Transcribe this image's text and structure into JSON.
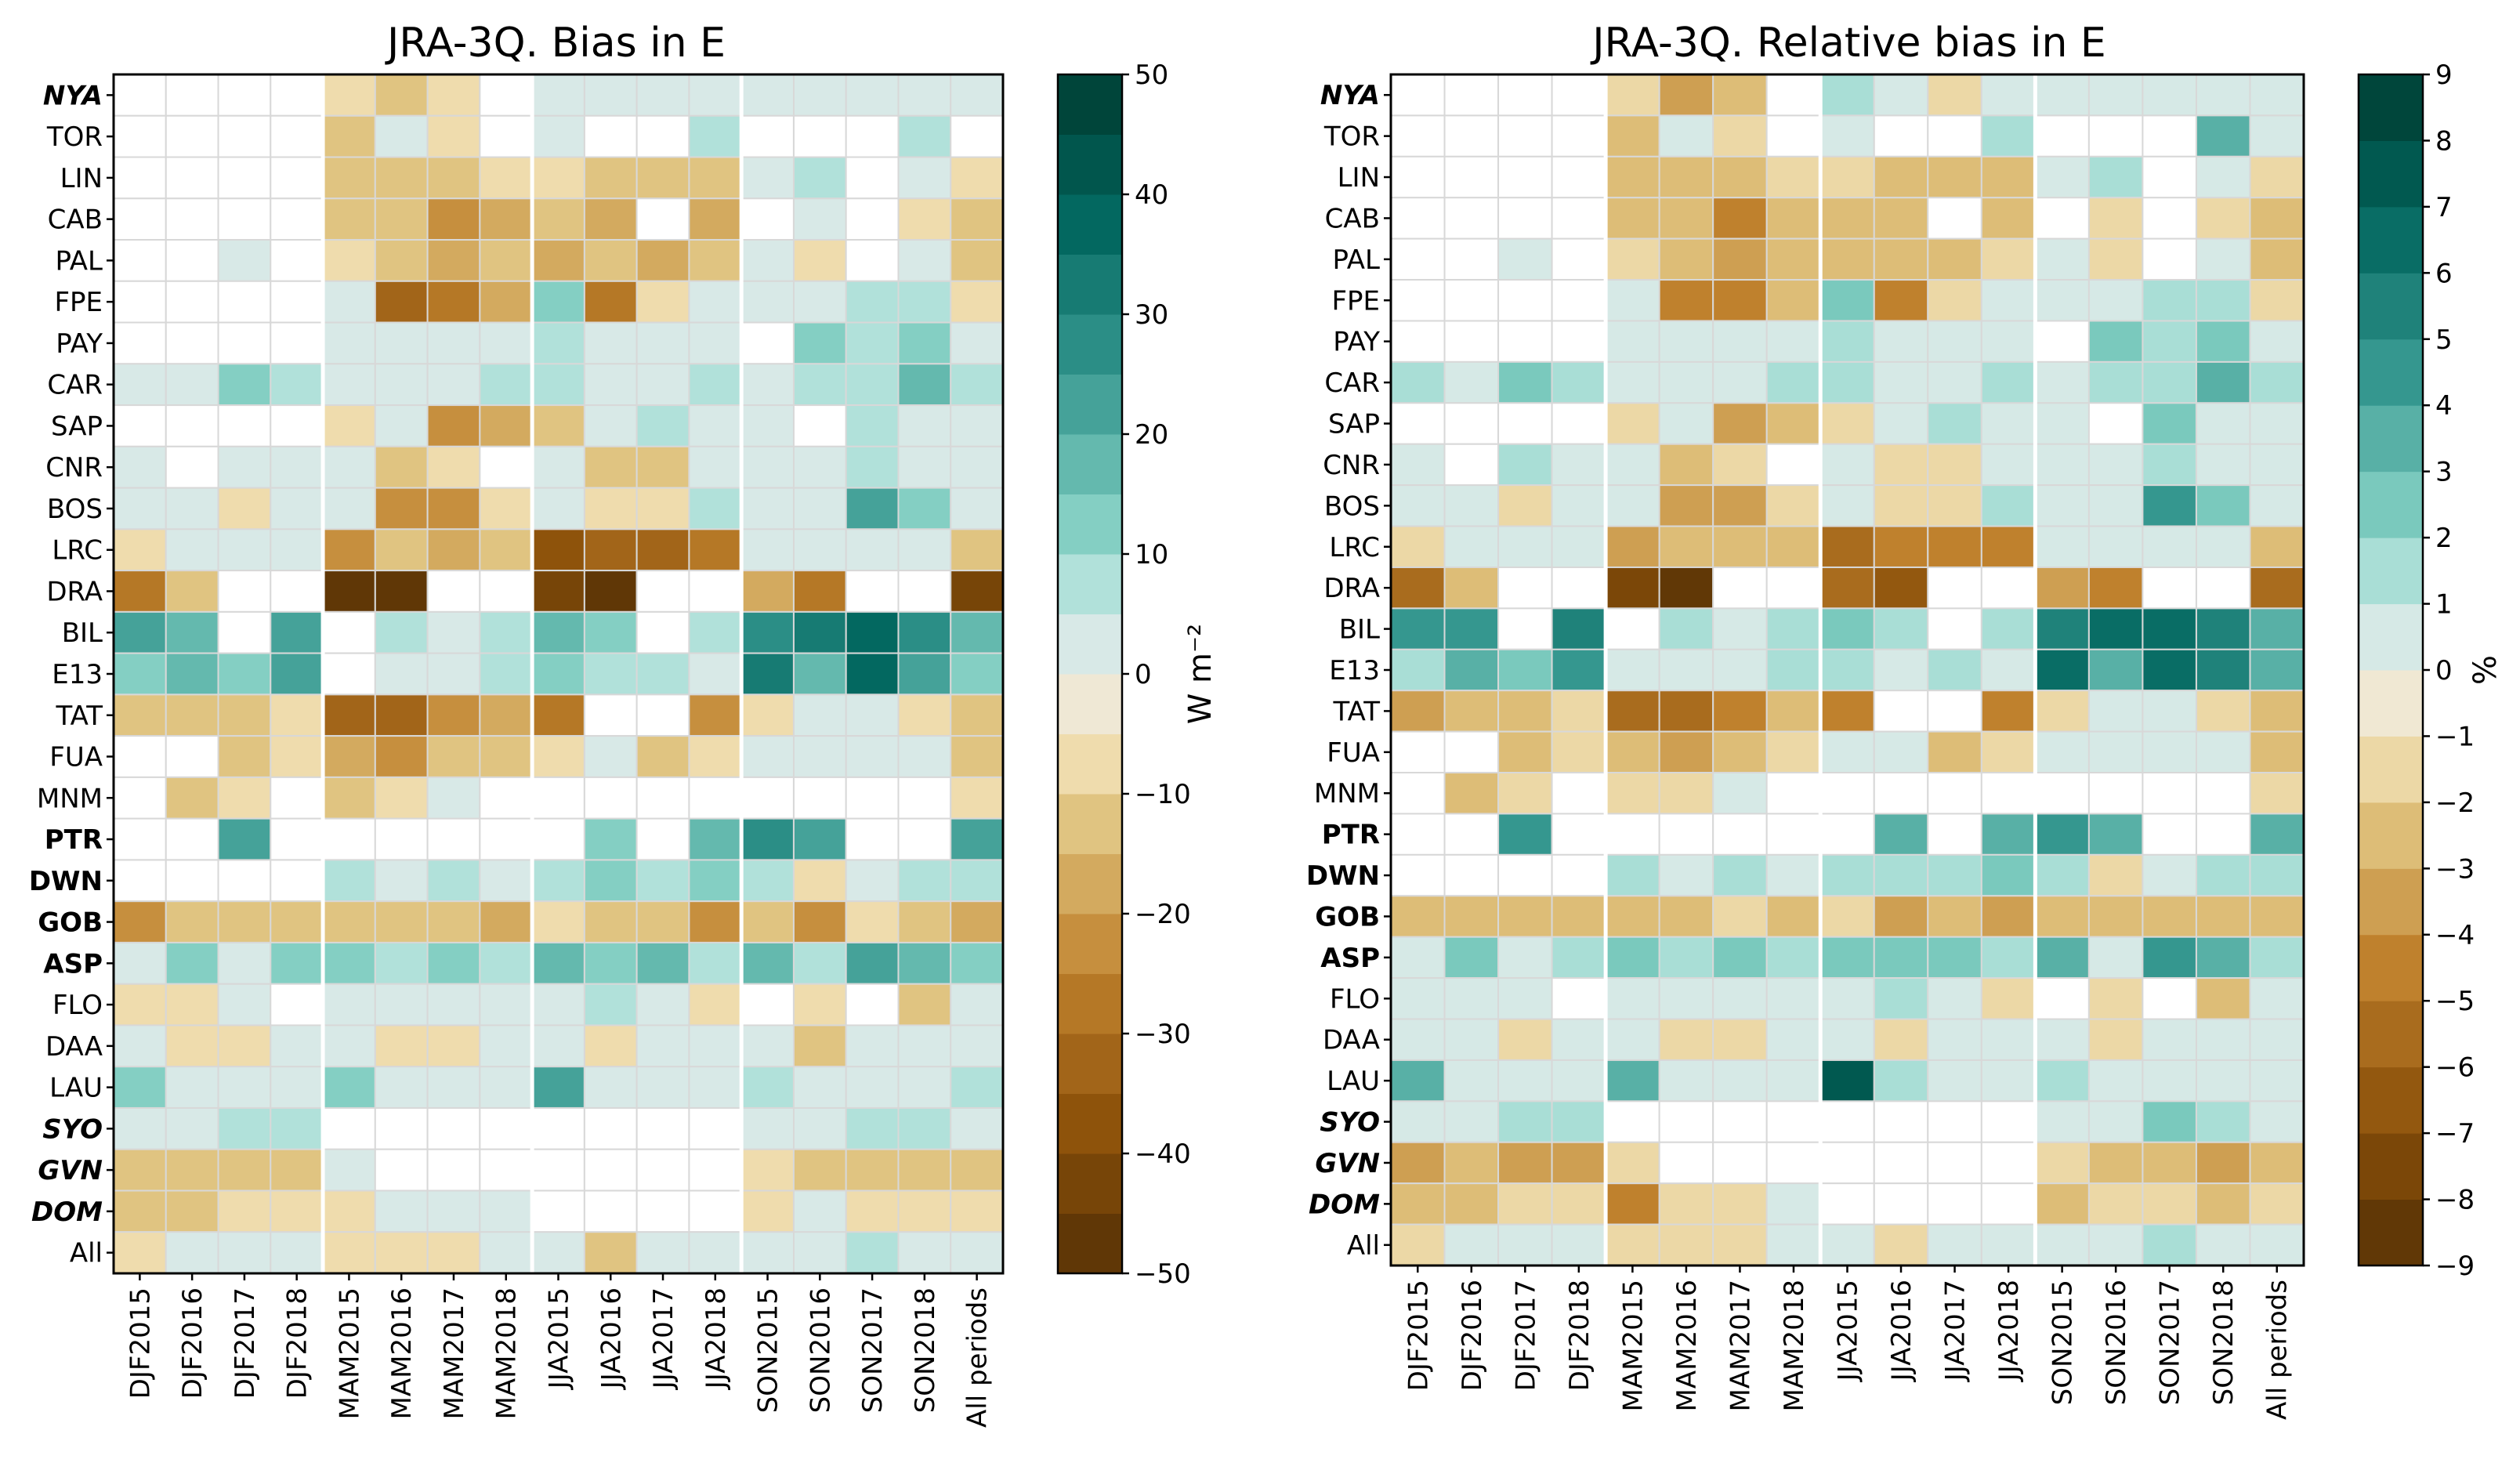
{
  "chart_data": [
    {
      "type": "heatmap",
      "title": "JRA-3Q. Bias in E",
      "colorbar_label": "W m⁻²",
      "colorbar_ticks": [
        "50",
        "40",
        "30",
        "20",
        "10",
        "0",
        "−10",
        "−20",
        "−30",
        "−40",
        "−50"
      ],
      "vmin": -50,
      "vmax": 50,
      "stations": [
        "NYA",
        "TOR",
        "LIN",
        "CAB",
        "PAL",
        "FPE",
        "PAY",
        "CAR",
        "SAP",
        "CNR",
        "BOS",
        "LRC",
        "DRA",
        "BIL",
        "E13",
        "TAT",
        "FUA",
        "MNM",
        "PTR",
        "DWN",
        "GOB",
        "ASP",
        "FLO",
        "DAA",
        "LAU",
        "SYO",
        "GVN",
        "DOM",
        "All"
      ],
      "periods": [
        "DJF2015",
        "DJF2016",
        "DJF2017",
        "DJF2018",
        "MAM2015",
        "MAM2016",
        "MAM2017",
        "MAM2018",
        "JJA2015",
        "JJA2016",
        "JJA2017",
        "JJA2018",
        "SON2015",
        "SON2016",
        "SON2017",
        "SON2018",
        "All periods"
      ],
      "values": [
        [
          null,
          null,
          null,
          null,
          -7,
          -12,
          -9,
          null,
          0,
          0,
          0,
          0,
          0,
          0,
          0,
          0,
          0
        ],
        [
          null,
          null,
          null,
          null,
          -12,
          0,
          -8,
          null,
          0,
          null,
          null,
          7,
          null,
          null,
          null,
          8,
          null
        ],
        [
          null,
          null,
          null,
          null,
          -14,
          -15,
          -12,
          -6,
          -7,
          -12,
          -12,
          -12,
          0,
          7,
          null,
          0,
          -8
        ],
        [
          null,
          null,
          null,
          null,
          -14,
          -14,
          -22,
          -17,
          -14,
          -17,
          null,
          -17,
          null,
          0,
          null,
          -6,
          -12
        ],
        [
          null,
          null,
          0,
          null,
          -8,
          -14,
          -17,
          -12,
          -17,
          -12,
          -18,
          -12,
          0,
          -6,
          null,
          0,
          -12
        ],
        [
          null,
          null,
          null,
          null,
          0,
          -32,
          -30,
          -17,
          10,
          -30,
          -7,
          0,
          0,
          0,
          7,
          8,
          -6
        ],
        [
          null,
          null,
          null,
          null,
          0,
          0,
          0,
          0,
          7,
          0,
          0,
          0,
          null,
          12,
          7,
          12,
          0
        ],
        [
          0,
          0,
          12,
          8,
          0,
          0,
          0,
          7,
          7,
          0,
          0,
          7,
          0,
          7,
          7,
          16,
          7
        ],
        [
          null,
          null,
          null,
          null,
          -6,
          0,
          -22,
          -18,
          -14,
          0,
          7,
          0,
          0,
          null,
          8,
          0,
          0
        ],
        [
          0,
          null,
          0,
          0,
          0,
          -14,
          -8,
          null,
          0,
          -12,
          -12,
          0,
          0,
          0,
          7,
          0,
          0
        ],
        [
          0,
          0,
          -8,
          0,
          0,
          -22,
          -22,
          -6,
          0,
          -7,
          -7,
          7,
          0,
          0,
          22,
          12,
          0
        ],
        [
          -8,
          0,
          0,
          0,
          -22,
          -14,
          -17,
          -14,
          -38,
          -32,
          -35,
          -28,
          0,
          0,
          0,
          0,
          -12
        ],
        [
          -30,
          -14,
          null,
          null,
          -46,
          -46,
          null,
          null,
          -42,
          -48,
          null,
          null,
          -18,
          -28,
          null,
          null,
          -42
        ],
        [
          22,
          17,
          null,
          22,
          null,
          7,
          0,
          8,
          17,
          12,
          null,
          7,
          28,
          32,
          35,
          28,
          18
        ],
        [
          12,
          17,
          12,
          22,
          null,
          0,
          0,
          8,
          12,
          7,
          7,
          0,
          32,
          17,
          35,
          22,
          12
        ],
        [
          -12,
          -12,
          -12,
          -8,
          -32,
          -32,
          -22,
          -17,
          -28,
          null,
          null,
          -22,
          -8,
          0,
          0,
          -6,
          -12
        ],
        [
          null,
          null,
          -12,
          -6,
          -17,
          -22,
          -14,
          -12,
          -6,
          0,
          -12,
          -6,
          0,
          0,
          0,
          0,
          -12
        ],
        [
          null,
          -14,
          -6,
          null,
          -12,
          -6,
          0,
          null,
          null,
          null,
          null,
          null,
          null,
          null,
          null,
          null,
          -6
        ],
        [
          null,
          null,
          22,
          null,
          null,
          null,
          null,
          null,
          null,
          14,
          null,
          17,
          28,
          22,
          null,
          null,
          22
        ],
        [
          null,
          null,
          null,
          null,
          7,
          0,
          7,
          0,
          7,
          12,
          8,
          12,
          7,
          -6,
          0,
          7,
          8
        ],
        [
          -22,
          -14,
          -14,
          -14,
          -14,
          -14,
          -14,
          -17,
          -6,
          -14,
          -14,
          -22,
          -14,
          -22,
          -6,
          -14,
          -17
        ],
        [
          0,
          12,
          0,
          12,
          12,
          8,
          12,
          8,
          17,
          12,
          17,
          8,
          17,
          8,
          22,
          17,
          12
        ],
        [
          -8,
          -8,
          0,
          null,
          0,
          0,
          0,
          0,
          0,
          7,
          0,
          -6,
          null,
          -6,
          null,
          -14,
          0
        ],
        [
          0,
          -6,
          -6,
          0,
          0,
          -6,
          -6,
          0,
          0,
          -6,
          0,
          0,
          0,
          -14,
          0,
          0,
          0
        ],
        [
          12,
          0,
          0,
          0,
          14,
          0,
          0,
          0,
          22,
          0,
          0,
          0,
          8,
          0,
          0,
          0,
          7
        ],
        [
          0,
          0,
          8,
          8,
          null,
          null,
          null,
          null,
          null,
          null,
          null,
          null,
          0,
          0,
          7,
          7,
          0
        ],
        [
          -14,
          -14,
          -14,
          -14,
          0,
          null,
          null,
          null,
          null,
          null,
          null,
          null,
          -8,
          -12,
          -12,
          -14,
          -12
        ],
        [
          -12,
          -12,
          -8,
          -8,
          -8,
          0,
          0,
          0,
          null,
          null,
          null,
          null,
          -8,
          0,
          -6,
          -6,
          -8
        ],
        [
          -6,
          0,
          0,
          0,
          -6,
          -8,
          -6,
          0,
          0,
          -12,
          0,
          0,
          0,
          0,
          7,
          0,
          0
        ]
      ]
    },
    {
      "type": "heatmap",
      "title": "JRA-3Q. Relative bias in E",
      "colorbar_label": "%",
      "colorbar_ticks": [
        "9",
        "8",
        "7",
        "6",
        "5",
        "4",
        "3",
        "2",
        "1",
        "0",
        "−1",
        "−2",
        "−3",
        "−4",
        "−5",
        "−6",
        "−7",
        "−8",
        "−9"
      ],
      "vmin": -9,
      "vmax": 9,
      "stations": [
        "NYA",
        "TOR",
        "LIN",
        "CAB",
        "PAL",
        "FPE",
        "PAY",
        "CAR",
        "SAP",
        "CNR",
        "BOS",
        "LRC",
        "DRA",
        "BIL",
        "E13",
        "TAT",
        "FUA",
        "MNM",
        "PTR",
        "DWN",
        "GOB",
        "ASP",
        "FLO",
        "DAA",
        "LAU",
        "SYO",
        "GVN",
        "DOM",
        "All"
      ],
      "periods": [
        "DJF2015",
        "DJF2016",
        "DJF2017",
        "DJF2018",
        "MAM2015",
        "MAM2016",
        "MAM2017",
        "MAM2018",
        "JJA2015",
        "JJA2016",
        "JJA2017",
        "JJA2018",
        "SON2015",
        "SON2016",
        "SON2017",
        "SON2018",
        "All periods"
      ],
      "values": [
        [
          null,
          null,
          null,
          null,
          -1.5,
          -3.5,
          -2.5,
          null,
          1.5,
          0,
          -1.5,
          0,
          0,
          0,
          0,
          0,
          0
        ],
        [
          null,
          null,
          null,
          null,
          -2.5,
          0,
          -1.5,
          null,
          0,
          null,
          null,
          1.5,
          null,
          null,
          null,
          3.5,
          0
        ],
        [
          null,
          null,
          null,
          null,
          -3,
          -2.5,
          -2.5,
          -1.5,
          -1.5,
          -2.5,
          -2.5,
          -2.5,
          0,
          1.5,
          null,
          0,
          -1.5
        ],
        [
          null,
          null,
          null,
          null,
          -2.5,
          -2.5,
          -4.5,
          -3,
          -2.5,
          -3,
          null,
          -2.5,
          null,
          -1.5,
          null,
          -1.5,
          -2.5
        ],
        [
          null,
          null,
          0,
          null,
          -1.5,
          -2.5,
          -3.5,
          -2.5,
          -3,
          -2.5,
          -2.5,
          -1.5,
          0,
          -1.5,
          null,
          0,
          -2.5
        ],
        [
          null,
          null,
          null,
          null,
          0,
          -4.5,
          -4.5,
          -2.5,
          2,
          -4.5,
          -1.5,
          0,
          0,
          0,
          1.5,
          1.5,
          -1.5
        ],
        [
          null,
          null,
          null,
          null,
          0,
          0,
          0,
          0,
          1.5,
          0,
          0,
          0,
          null,
          2.5,
          1.5,
          2.5,
          0
        ],
        [
          1.5,
          0,
          2,
          1.5,
          0,
          0,
          0,
          1.5,
          1.5,
          0,
          0,
          1.5,
          0,
          1.5,
          1.5,
          3.5,
          1.5
        ],
        [
          null,
          null,
          null,
          null,
          -1.5,
          0,
          -3.5,
          -2.5,
          -1.5,
          0,
          1.5,
          0,
          0,
          null,
          2.5,
          0,
          0
        ],
        [
          0,
          null,
          1.5,
          0,
          0,
          -2.5,
          -1.5,
          null,
          0,
          -1.5,
          -1.5,
          0,
          0,
          0,
          1.5,
          0,
          0
        ],
        [
          0,
          0,
          -1.5,
          0,
          0,
          -3.5,
          -3.5,
          -1.5,
          0,
          -1.5,
          -1.5,
          1.5,
          0,
          0,
          4.5,
          2,
          0
        ],
        [
          -1.5,
          0,
          0,
          0,
          -3.5,
          -2.5,
          -2.5,
          -2.5,
          -5.5,
          -4.5,
          -4.5,
          -4.5,
          0,
          0,
          0,
          0,
          -2.5
        ],
        [
          -5.5,
          -2.5,
          null,
          null,
          -7.5,
          -8.5,
          null,
          null,
          -5.5,
          -6.5,
          null,
          null,
          -3.5,
          -4.5,
          null,
          null,
          -6
        ],
        [
          4,
          4.5,
          null,
          5.5,
          null,
          1.5,
          0,
          1.5,
          2,
          1.5,
          null,
          1.5,
          5.5,
          6.5,
          6.5,
          5.5,
          3
        ],
        [
          1.5,
          3,
          2,
          4.5,
          0,
          0,
          0,
          1.5,
          1.5,
          0,
          1.5,
          0,
          6.5,
          3.5,
          6.5,
          5,
          3
        ],
        [
          -3.5,
          -2.5,
          -2.5,
          -1.5,
          -5.5,
          -5.5,
          -4.5,
          -2.5,
          -4.5,
          null,
          null,
          -4.5,
          -1.5,
          0,
          0,
          -1.5,
          -2.5
        ],
        [
          null,
          null,
          -2.5,
          -1.5,
          -3,
          -3.5,
          -3,
          -1.5,
          0,
          0,
          -2.5,
          -1.5,
          0,
          0,
          0,
          0,
          -2.5
        ],
        [
          null,
          -2.5,
          -1.5,
          null,
          -1.5,
          -1.5,
          0,
          null,
          null,
          null,
          null,
          null,
          null,
          null,
          null,
          null,
          -1.5
        ],
        [
          null,
          null,
          4.5,
          null,
          null,
          null,
          null,
          null,
          null,
          3.5,
          null,
          3,
          4.5,
          3.5,
          null,
          null,
          3.5
        ],
        [
          null,
          null,
          null,
          null,
          1.5,
          0,
          1.5,
          0,
          1.5,
          1.5,
          1.5,
          2.5,
          1.5,
          -1.5,
          0,
          1.5,
          1.5
        ],
        [
          -2.5,
          -2.5,
          -2.5,
          -2.5,
          -2.5,
          -2.5,
          -1.5,
          -2.5,
          -1.5,
          -3.5,
          -2.5,
          -3.5,
          -2.5,
          -2.5,
          -2.5,
          -2.5,
          -2.5
        ],
        [
          0,
          2,
          0,
          1.5,
          2.5,
          1.5,
          2.5,
          1.5,
          2.5,
          2,
          2.5,
          1.5,
          3,
          0,
          4,
          3,
          1.5
        ],
        [
          0,
          0,
          0,
          null,
          0,
          0,
          0,
          0,
          0,
          1.5,
          0,
          -1.5,
          null,
          -1.5,
          null,
          -2.5,
          0
        ],
        [
          0,
          0,
          -1.5,
          0,
          0,
          -1.5,
          -1.5,
          0,
          0,
          -1.5,
          0,
          0,
          0,
          -1.5,
          0,
          0,
          0
        ],
        [
          3,
          0,
          0,
          0,
          3.5,
          0,
          0,
          0,
          7,
          1.5,
          0,
          0,
          1.5,
          0,
          0,
          0,
          0
        ],
        [
          0,
          0,
          1.5,
          1.5,
          null,
          null,
          null,
          null,
          null,
          null,
          null,
          null,
          0,
          0,
          2.5,
          1.5,
          0
        ],
        [
          -3.5,
          -2.5,
          -3.5,
          -3.5,
          -1.5,
          null,
          null,
          null,
          null,
          null,
          null,
          null,
          -1.5,
          -2.5,
          -2.5,
          -3.5,
          -2.5
        ],
        [
          -2.5,
          -2.5,
          -1.5,
          -1.5,
          -4.5,
          -1.5,
          -1.5,
          0,
          null,
          null,
          null,
          null,
          -2.5,
          -1.5,
          -1.5,
          -2.5,
          -1.5
        ],
        [
          -1.5,
          0,
          0,
          0,
          -1.5,
          -1.5,
          -1.5,
          0,
          0,
          -2,
          0,
          0,
          0,
          0,
          1.5,
          0,
          0
        ]
      ]
    }
  ],
  "colors": {
    "highlight_green": "#2a9d7f",
    "highlight_blue": "#3b4f8c",
    "empty_cell": "#ffffff",
    "grid": "#d8d8d8"
  },
  "label_styles": {
    "green_italic": [
      "NYA",
      "SYO",
      "GVN",
      "DOM"
    ],
    "blue": [
      "PTR",
      "DWN",
      "GOB",
      "ASP"
    ]
  }
}
